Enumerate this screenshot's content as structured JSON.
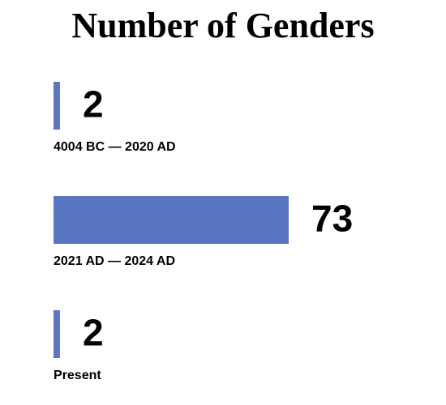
{
  "chart_data": {
    "type": "bar",
    "orientation": "horizontal",
    "title": "Number of Genders",
    "categories": [
      "4004 BC — 2020 AD",
      "2021 AD — 2024 AD",
      "Present"
    ],
    "values": [
      2,
      73,
      2
    ],
    "color": "#5b76c0"
  }
}
